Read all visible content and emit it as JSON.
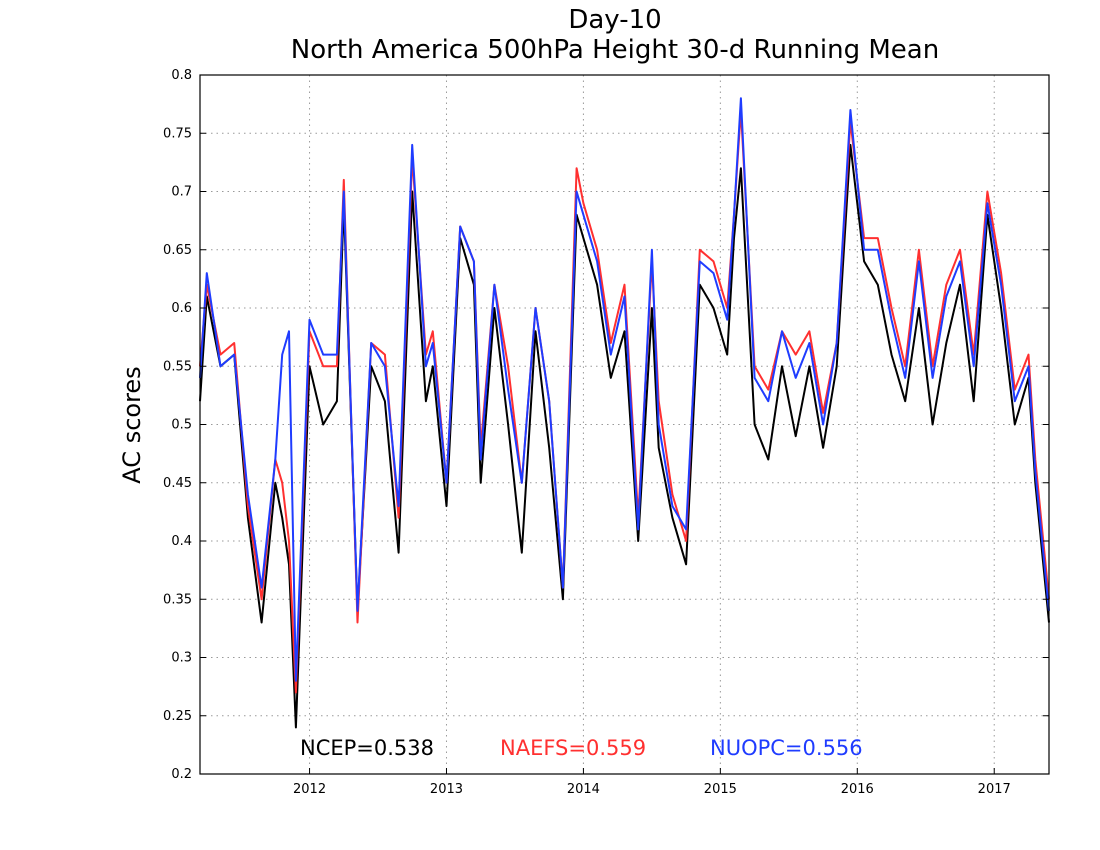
{
  "chart_data": {
    "type": "line",
    "title": "Day-10",
    "subtitle": "North America 500hPa Height 30-d Running Mean",
    "xlabel": "",
    "ylabel": "AC scores",
    "xlim": [
      2011.2,
      2017.4
    ],
    "ylim": [
      0.2,
      0.8
    ],
    "x_ticks": [
      "2012",
      "2013",
      "2014",
      "2015",
      "2016",
      "2017"
    ],
    "y_ticks": [
      "0.2",
      "0.25",
      "0.3",
      "0.35",
      "0.4",
      "0.45",
      "0.5",
      "0.55",
      "0.6",
      "0.65",
      "0.7",
      "0.75",
      "0.8"
    ],
    "grid": true,
    "x": [
      2011.2,
      2011.25,
      2011.35,
      2011.45,
      2011.55,
      2011.65,
      2011.75,
      2011.8,
      2011.85,
      2011.9,
      2012.0,
      2012.1,
      2012.2,
      2012.25,
      2012.35,
      2012.45,
      2012.55,
      2012.65,
      2012.75,
      2012.85,
      2012.9,
      2013.0,
      2013.1,
      2013.2,
      2013.25,
      2013.35,
      2013.45,
      2013.55,
      2013.65,
      2013.75,
      2013.85,
      2013.95,
      2014.0,
      2014.1,
      2014.2,
      2014.3,
      2014.4,
      2014.5,
      2014.55,
      2014.65,
      2014.75,
      2014.85,
      2014.95,
      2015.05,
      2015.1,
      2015.15,
      2015.25,
      2015.35,
      2015.45,
      2015.55,
      2015.65,
      2015.75,
      2015.85,
      2015.95,
      2016.05,
      2016.15,
      2016.25,
      2016.35,
      2016.45,
      2016.55,
      2016.65,
      2016.75,
      2016.85,
      2016.95,
      2017.05,
      2017.15,
      2017.25,
      2017.3,
      2017.4
    ],
    "series": [
      {
        "name": "NCEP",
        "color": "#000000",
        "values": [
          0.52,
          0.61,
          0.55,
          0.56,
          0.42,
          0.33,
          0.45,
          0.42,
          0.38,
          0.24,
          0.55,
          0.5,
          0.52,
          0.69,
          0.34,
          0.55,
          0.52,
          0.39,
          0.7,
          0.52,
          0.55,
          0.43,
          0.66,
          0.62,
          0.45,
          0.6,
          0.5,
          0.39,
          0.58,
          0.48,
          0.35,
          0.68,
          0.66,
          0.62,
          0.54,
          0.58,
          0.4,
          0.6,
          0.48,
          0.42,
          0.38,
          0.62,
          0.6,
          0.56,
          0.66,
          0.72,
          0.5,
          0.47,
          0.55,
          0.49,
          0.55,
          0.48,
          0.55,
          0.74,
          0.64,
          0.62,
          0.56,
          0.52,
          0.6,
          0.5,
          0.57,
          0.62,
          0.52,
          0.68,
          0.6,
          0.5,
          0.54,
          0.45,
          0.33
        ]
      },
      {
        "name": "NAEFS",
        "color": "#ff3030",
        "values": [
          0.55,
          0.62,
          0.56,
          0.57,
          0.43,
          0.35,
          0.47,
          0.45,
          0.4,
          0.27,
          0.58,
          0.55,
          0.55,
          0.71,
          0.33,
          0.57,
          0.56,
          0.42,
          0.73,
          0.56,
          0.58,
          0.45,
          0.67,
          0.64,
          0.48,
          0.62,
          0.55,
          0.45,
          0.6,
          0.52,
          0.36,
          0.72,
          0.69,
          0.65,
          0.57,
          0.62,
          0.42,
          0.64,
          0.52,
          0.44,
          0.4,
          0.65,
          0.64,
          0.6,
          0.68,
          0.77,
          0.55,
          0.53,
          0.58,
          0.56,
          0.58,
          0.51,
          0.57,
          0.76,
          0.66,
          0.66,
          0.6,
          0.55,
          0.65,
          0.55,
          0.62,
          0.65,
          0.56,
          0.7,
          0.63,
          0.53,
          0.56,
          0.47,
          0.35
        ]
      },
      {
        "name": "NUOPC",
        "color": "#1f3cff",
        "values": [
          0.54,
          0.63,
          0.55,
          0.56,
          0.44,
          0.36,
          0.47,
          0.56,
          0.58,
          0.28,
          0.59,
          0.56,
          0.56,
          0.7,
          0.34,
          0.57,
          0.55,
          0.43,
          0.74,
          0.55,
          0.57,
          0.45,
          0.67,
          0.64,
          0.47,
          0.62,
          0.53,
          0.45,
          0.6,
          0.52,
          0.36,
          0.7,
          0.68,
          0.64,
          0.56,
          0.61,
          0.41,
          0.65,
          0.5,
          0.43,
          0.41,
          0.64,
          0.63,
          0.59,
          0.68,
          0.78,
          0.54,
          0.52,
          0.58,
          0.54,
          0.57,
          0.5,
          0.57,
          0.77,
          0.65,
          0.65,
          0.59,
          0.54,
          0.64,
          0.54,
          0.61,
          0.64,
          0.55,
          0.69,
          0.62,
          0.52,
          0.55,
          0.46,
          0.34
        ]
      }
    ],
    "stats": [
      {
        "label": "NCEP=0.538",
        "color": "#000000"
      },
      {
        "label": "NAEFS=0.559",
        "color": "#ff3030"
      },
      {
        "label": "NUOPC=0.556",
        "color": "#1f3cff"
      }
    ]
  }
}
